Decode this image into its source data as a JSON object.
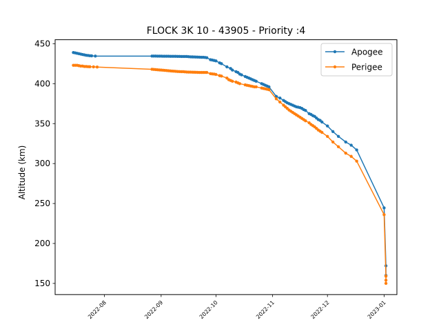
{
  "chart_data": {
    "type": "line",
    "title": "FLOCK 3K 10 - 43905 - Priority :4",
    "xlabel": "",
    "ylabel": "Altitude (km)",
    "xlim": [
      "2022-07-05",
      "2023-01-08"
    ],
    "ylim": [
      136,
      455
    ],
    "x_ticks": [
      "2022-08",
      "2022-09",
      "2022-10",
      "2022-11",
      "2022-12",
      "2023-01"
    ],
    "y_ticks": [
      150,
      200,
      250,
      300,
      350,
      400,
      450
    ],
    "grid": false,
    "legend": "top-right",
    "series": [
      {
        "name": "Apogee",
        "color": "#1f77b4",
        "points": [
          [
            "2022-07-15",
            439
          ],
          [
            "2022-07-16",
            438.5
          ],
          [
            "2022-07-17",
            438
          ],
          [
            "2022-07-18",
            437.5
          ],
          [
            "2022-07-19",
            437
          ],
          [
            "2022-07-20",
            436.5
          ],
          [
            "2022-07-21",
            436
          ],
          [
            "2022-07-22",
            435.5
          ],
          [
            "2022-07-23",
            435.3
          ],
          [
            "2022-07-24",
            435
          ],
          [
            "2022-07-25",
            434.8
          ],
          [
            "2022-07-27",
            434.5
          ],
          [
            "2022-08-27",
            434.5
          ],
          [
            "2022-08-28",
            434.5
          ],
          [
            "2022-08-29",
            434.5
          ],
          [
            "2022-08-30",
            434.4
          ],
          [
            "2022-08-31",
            434.4
          ],
          [
            "2022-09-01",
            434.4
          ],
          [
            "2022-09-02",
            434.3
          ],
          [
            "2022-09-03",
            434.3
          ],
          [
            "2022-09-04",
            434.3
          ],
          [
            "2022-09-05",
            434.3
          ],
          [
            "2022-09-06",
            434.2
          ],
          [
            "2022-09-07",
            434.2
          ],
          [
            "2022-09-08",
            434.2
          ],
          [
            "2022-09-09",
            434.2
          ],
          [
            "2022-09-10",
            434.1
          ],
          [
            "2022-09-11",
            434.1
          ],
          [
            "2022-09-12",
            434
          ],
          [
            "2022-09-13",
            434
          ],
          [
            "2022-09-14",
            434
          ],
          [
            "2022-09-15",
            434
          ],
          [
            "2022-09-16",
            433.8
          ],
          [
            "2022-09-17",
            433.6
          ],
          [
            "2022-09-18",
            433.5
          ],
          [
            "2022-09-19",
            433.4
          ],
          [
            "2022-09-20",
            433.3
          ],
          [
            "2022-09-21",
            433.2
          ],
          [
            "2022-09-22",
            433.1
          ],
          [
            "2022-09-23",
            433
          ],
          [
            "2022-09-24",
            433
          ],
          [
            "2022-09-25",
            432.8
          ],
          [
            "2022-09-26",
            432.5
          ],
          [
            "2022-09-28",
            430
          ],
          [
            "2022-09-29",
            429.6
          ],
          [
            "2022-09-30",
            429
          ],
          [
            "2022-10-01",
            428.5
          ],
          [
            "2022-10-03",
            426
          ],
          [
            "2022-10-04",
            425
          ],
          [
            "2022-10-07",
            421
          ],
          [
            "2022-10-09",
            419
          ],
          [
            "2022-10-10",
            417
          ],
          [
            "2022-10-12",
            415
          ],
          [
            "2022-10-13",
            414
          ],
          [
            "2022-10-14",
            412
          ],
          [
            "2022-10-15",
            411
          ],
          [
            "2022-10-17",
            409
          ],
          [
            "2022-10-18",
            408
          ],
          [
            "2022-10-19",
            407
          ],
          [
            "2022-10-20",
            406
          ],
          [
            "2022-10-21",
            405
          ],
          [
            "2022-10-22",
            404
          ],
          [
            "2022-10-23",
            403
          ],
          [
            "2022-10-26",
            400
          ],
          [
            "2022-10-27",
            399
          ],
          [
            "2022-10-28",
            398
          ],
          [
            "2022-10-29",
            397
          ],
          [
            "2022-10-30",
            396
          ],
          [
            "2022-11-03",
            384
          ],
          [
            "2022-11-05",
            382
          ],
          [
            "2022-11-07",
            379
          ],
          [
            "2022-11-08",
            377.5
          ],
          [
            "2022-11-09",
            376
          ],
          [
            "2022-11-10",
            375
          ],
          [
            "2022-11-11",
            374
          ],
          [
            "2022-11-12",
            373
          ],
          [
            "2022-11-13",
            372
          ],
          [
            "2022-11-14",
            371
          ],
          [
            "2022-11-15",
            370.5
          ],
          [
            "2022-11-16",
            370
          ],
          [
            "2022-11-17",
            369
          ],
          [
            "2022-11-18",
            367.5
          ],
          [
            "2022-11-19",
            366.5
          ],
          [
            "2022-11-21",
            362.5
          ],
          [
            "2022-11-22",
            361.5
          ],
          [
            "2022-11-23",
            360
          ],
          [
            "2022-11-24",
            359
          ],
          [
            "2022-11-25",
            357
          ],
          [
            "2022-11-26",
            355
          ],
          [
            "2022-11-27",
            354
          ],
          [
            "2022-11-28",
            352
          ],
          [
            "2022-12-01",
            347
          ],
          [
            "2022-12-04",
            340
          ],
          [
            "2022-12-07",
            334
          ],
          [
            "2022-12-11",
            327
          ],
          [
            "2022-12-14",
            323
          ],
          [
            "2022-12-17",
            317
          ],
          [
            "2023-01-01",
            244.5
          ],
          [
            "2023-01-02",
            172
          ],
          [
            "2023-01-02",
            160
          ]
        ]
      },
      {
        "name": "Perigee",
        "color": "#ff7f0e",
        "points": [
          [
            "2022-07-15",
            423
          ],
          [
            "2022-07-16",
            423
          ],
          [
            "2022-07-17",
            423
          ],
          [
            "2022-07-18",
            422.5
          ],
          [
            "2022-07-19",
            422
          ],
          [
            "2022-07-20",
            422
          ],
          [
            "2022-07-21",
            421.5
          ],
          [
            "2022-07-22",
            421.5
          ],
          [
            "2022-07-23",
            421.3
          ],
          [
            "2022-07-24",
            421.2
          ],
          [
            "2022-07-26",
            421
          ],
          [
            "2022-07-28",
            420.8
          ],
          [
            "2022-08-27",
            418
          ],
          [
            "2022-08-28",
            417.8
          ],
          [
            "2022-08-29",
            417.6
          ],
          [
            "2022-08-30",
            417.4
          ],
          [
            "2022-08-31",
            417.2
          ],
          [
            "2022-09-01",
            417
          ],
          [
            "2022-09-02",
            416.8
          ],
          [
            "2022-09-03",
            416.6
          ],
          [
            "2022-09-04",
            416.4
          ],
          [
            "2022-09-05",
            416.2
          ],
          [
            "2022-09-06",
            416
          ],
          [
            "2022-09-07",
            415.8
          ],
          [
            "2022-09-08",
            415.6
          ],
          [
            "2022-09-09",
            415.4
          ],
          [
            "2022-09-10",
            415.2
          ],
          [
            "2022-09-11",
            415.1
          ],
          [
            "2022-09-12",
            415
          ],
          [
            "2022-09-13",
            415
          ],
          [
            "2022-09-14",
            414.8
          ],
          [
            "2022-09-15",
            414.6
          ],
          [
            "2022-09-16",
            414.5
          ],
          [
            "2022-09-17",
            414.5
          ],
          [
            "2022-09-18",
            414.4
          ],
          [
            "2022-09-19",
            414.3
          ],
          [
            "2022-09-20",
            414.2
          ],
          [
            "2022-09-21",
            414.1
          ],
          [
            "2022-09-22",
            414
          ],
          [
            "2022-09-23",
            414
          ],
          [
            "2022-09-24",
            414
          ],
          [
            "2022-09-25",
            414
          ],
          [
            "2022-09-26",
            414
          ],
          [
            "2022-09-28",
            412.5
          ],
          [
            "2022-09-29",
            412.2
          ],
          [
            "2022-09-30",
            412
          ],
          [
            "2022-10-01",
            411.5
          ],
          [
            "2022-10-03",
            410
          ],
          [
            "2022-10-04",
            409.5
          ],
          [
            "2022-10-07",
            407
          ],
          [
            "2022-10-08",
            405
          ],
          [
            "2022-10-09",
            404
          ],
          [
            "2022-10-10",
            403
          ],
          [
            "2022-10-12",
            402
          ],
          [
            "2022-10-13",
            401
          ],
          [
            "2022-10-14",
            400
          ],
          [
            "2022-10-17",
            398.5
          ],
          [
            "2022-10-18",
            398
          ],
          [
            "2022-10-19",
            397.5
          ],
          [
            "2022-10-20",
            397
          ],
          [
            "2022-10-21",
            396.5
          ],
          [
            "2022-10-22",
            396
          ],
          [
            "2022-10-23",
            396
          ],
          [
            "2022-10-26",
            394.5
          ],
          [
            "2022-10-27",
            394
          ],
          [
            "2022-10-28",
            393.5
          ],
          [
            "2022-10-29",
            393
          ],
          [
            "2022-10-30",
            392.5
          ],
          [
            "2022-11-03",
            381
          ],
          [
            "2022-11-05",
            377
          ],
          [
            "2022-11-07",
            373
          ],
          [
            "2022-11-08",
            371
          ],
          [
            "2022-11-09",
            369
          ],
          [
            "2022-11-10",
            367
          ],
          [
            "2022-11-11",
            365.5
          ],
          [
            "2022-11-12",
            364
          ],
          [
            "2022-11-13",
            362.5
          ],
          [
            "2022-11-14",
            361
          ],
          [
            "2022-11-15",
            359.5
          ],
          [
            "2022-11-16",
            358
          ],
          [
            "2022-11-17",
            356.5
          ],
          [
            "2022-11-18",
            355
          ],
          [
            "2022-11-19",
            353.5
          ],
          [
            "2022-11-21",
            351
          ],
          [
            "2022-11-22",
            349
          ],
          [
            "2022-11-23",
            347.5
          ],
          [
            "2022-11-24",
            346
          ],
          [
            "2022-11-25",
            344
          ],
          [
            "2022-11-26",
            342
          ],
          [
            "2022-11-27",
            340.5
          ],
          [
            "2022-11-28",
            339
          ],
          [
            "2022-12-01",
            334
          ],
          [
            "2022-12-04",
            327
          ],
          [
            "2022-12-07",
            321
          ],
          [
            "2022-12-11",
            313
          ],
          [
            "2022-12-14",
            309
          ],
          [
            "2022-12-17",
            303
          ],
          [
            "2023-01-01",
            236
          ],
          [
            "2023-01-02",
            159
          ],
          [
            "2023-01-02",
            154
          ],
          [
            "2023-01-02",
            150
          ]
        ]
      }
    ]
  }
}
